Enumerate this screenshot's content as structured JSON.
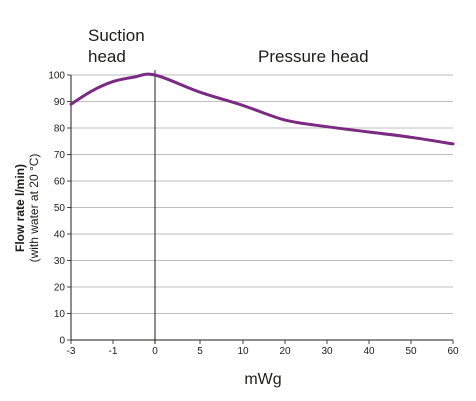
{
  "chart_data": {
    "type": "line",
    "xlabel": "mWg",
    "ylabel_line1": "Flow rate l/min)",
    "ylabel_line2": "(with water at 20 °C)",
    "region_labels": {
      "suction_line1": "Suction",
      "suction_line2": "head",
      "pressure": "Pressure head"
    },
    "x_ticks": [
      "-3",
      "-1",
      "0",
      "5",
      "10",
      "20",
      "30",
      "40",
      "50",
      "60"
    ],
    "y_ticks": [
      "0",
      "10",
      "20",
      "30",
      "40",
      "50",
      "60",
      "70",
      "80",
      "90",
      "100"
    ],
    "ylim": [
      0,
      100
    ],
    "grid": true,
    "series": [
      {
        "color": "#7b2a83",
        "x": [
          -3,
          -2,
          -1,
          -0.5,
          0,
          5,
          10,
          20,
          30,
          40,
          50,
          60
        ],
        "y": [
          89,
          94,
          97.5,
          99.2,
          100,
          93.5,
          88.5,
          83,
          80.5,
          78.5,
          76.5,
          74
        ]
      }
    ]
  }
}
